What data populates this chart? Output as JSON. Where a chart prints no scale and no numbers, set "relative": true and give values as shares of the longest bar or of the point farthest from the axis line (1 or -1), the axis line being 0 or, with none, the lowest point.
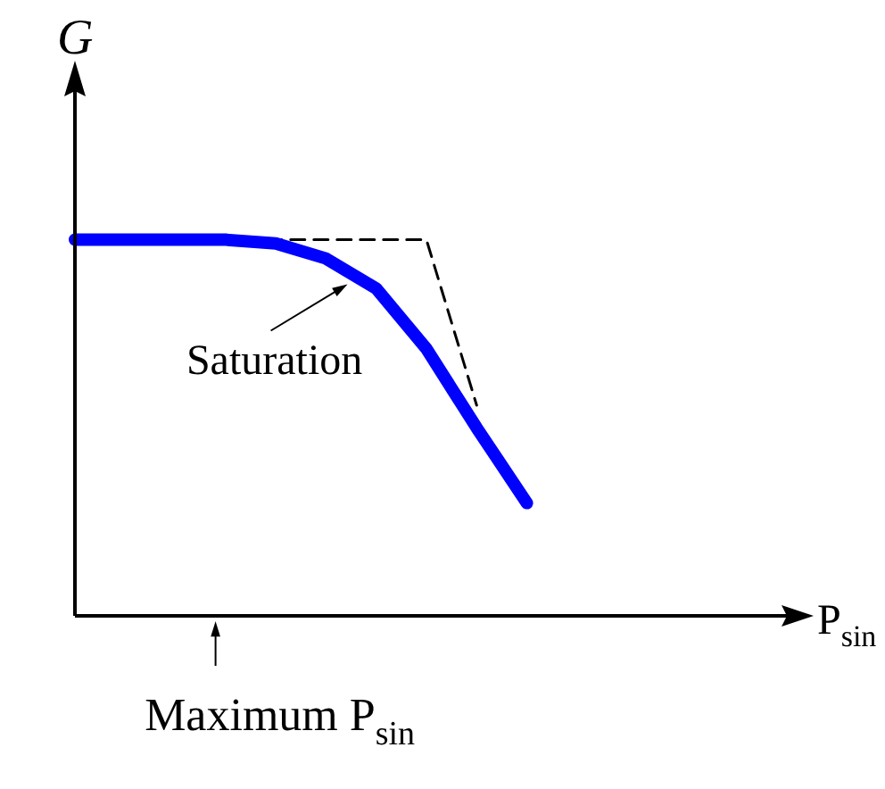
{
  "chart_data": {
    "type": "line",
    "relative": true,
    "ylabel": "G",
    "xlabel": "P$_{sin}$",
    "categories": [
      null,
      null,
      null,
      null,
      null,
      null,
      null,
      null,
      null,
      null,
      null,
      null,
      null,
      null,
      null
    ],
    "series": [
      {
        "color": "#0000ff",
        "line_style": "solid",
        "values": [
          1,
          1,
          1,
          1,
          0.99,
          0.95,
          0.87,
          0.71,
          0.5,
          0.3,
          null,
          null,
          null,
          null,
          null
        ]
      },
      {
        "color": "#000000",
        "line_style": "dashed",
        "values": [
          null,
          null,
          null,
          null,
          1,
          1,
          1,
          1,
          0.56,
          null,
          null,
          null,
          null,
          null,
          null
        ]
      }
    ],
    "annotations": [
      "Saturation",
      "Maximum P$_{sin}$"
    ]
  }
}
